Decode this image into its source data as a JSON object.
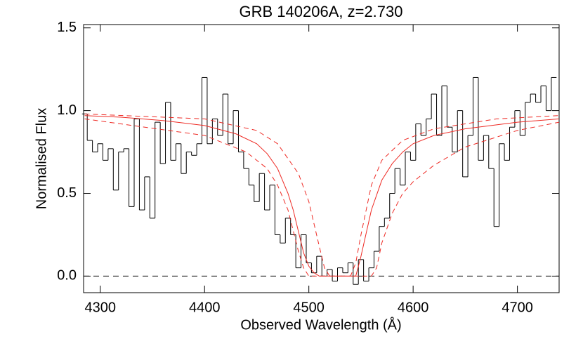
{
  "chart_data": {
    "type": "line",
    "title": "GRB 140206A, z=2.730",
    "x_label": "Observed Wavelength (Å)",
    "y_label": "Normalised Flux",
    "xlim": [
      4284,
      4740
    ],
    "ylim": [
      -0.1,
      1.52
    ],
    "xticks": [
      4300,
      4400,
      4500,
      4600,
      4700
    ],
    "yticks": [
      {
        "value": 0,
        "label": "0.0"
      },
      {
        "value": 0.5,
        "label": "0.5"
      },
      {
        "value": 1,
        "label": "1.0"
      },
      {
        "value": 1.5,
        "label": "1.5"
      }
    ],
    "reference_line": 0,
    "series": [
      {
        "style": "steps",
        "color": "#000000",
        "x": [
          4285,
          4290,
          4295,
          4300,
          4305,
          4310,
          4315,
          4320,
          4325,
          4330,
          4335,
          4340,
          4345,
          4350,
          4355,
          4360,
          4365,
          4370,
          4375,
          4380,
          4385,
          4390,
          4395,
          4400,
          4405,
          4410,
          4415,
          4420,
          4425,
          4430,
          4435,
          4440,
          4445,
          4450,
          4455,
          4460,
          4465,
          4470,
          4475,
          4480,
          4485,
          4490,
          4495,
          4500,
          4505,
          4510,
          4515,
          4520,
          4525,
          4530,
          4535,
          4540,
          4545,
          4550,
          4555,
          4560,
          4565,
          4570,
          4575,
          4580,
          4585,
          4590,
          4595,
          4600,
          4605,
          4610,
          4615,
          4620,
          4625,
          4630,
          4635,
          4640,
          4645,
          4650,
          4655,
          4660,
          4665,
          4670,
          4675,
          4680,
          4685,
          4690,
          4695,
          4700,
          4705,
          4710,
          4715,
          4720,
          4725,
          4730,
          4735
        ],
        "values": [
          0.98,
          0.82,
          0.75,
          0.8,
          0.7,
          0.77,
          0.52,
          0.75,
          0.77,
          0.42,
          0.95,
          0.4,
          0.6,
          0.35,
          0.93,
          0.68,
          1.05,
          0.7,
          0.8,
          0.62,
          0.75,
          0.73,
          0.8,
          1.2,
          0.8,
          0.95,
          0.85,
          1.1,
          0.8,
          1.0,
          0.75,
          0.65,
          0.55,
          0.45,
          0.62,
          0.4,
          0.55,
          0.25,
          0.2,
          0.35,
          0.25,
          0.05,
          0.25,
          0.08,
          0.02,
          0.12,
          0.0,
          0.04,
          -0.03,
          0.05,
          0.02,
          0.08,
          -0.05,
          0.1,
          -0.03,
          0.05,
          0.15,
          0.3,
          0.35,
          0.5,
          0.65,
          0.55,
          0.75,
          0.7,
          0.92,
          0.85,
          0.95,
          1.1,
          0.85,
          1.15,
          0.9,
          0.75,
          1.0,
          0.6,
          0.85,
          1.2,
          0.7,
          0.85,
          0.65,
          0.3,
          0.8,
          0.7,
          0.9,
          1.0,
          0.85,
          1.05,
          1.1,
          1.05,
          1.15,
          1.0,
          1.2
        ]
      },
      {
        "style": "solid",
        "color": "#ee2a24",
        "x": [
          4285,
          4320,
          4360,
          4400,
          4430,
          4450,
          4460,
          4470,
          4480,
          4485,
          4490,
          4495,
          4500,
          4505,
          4510,
          4545,
          4550,
          4555,
          4560,
          4570,
          4580,
          4590,
          4600,
          4620,
          4650,
          4700,
          4740
        ],
        "values": [
          0.97,
          0.96,
          0.94,
          0.91,
          0.86,
          0.8,
          0.74,
          0.65,
          0.5,
          0.4,
          0.27,
          0.14,
          0.06,
          0.02,
          0,
          0,
          0.12,
          0.26,
          0.4,
          0.58,
          0.68,
          0.75,
          0.8,
          0.85,
          0.89,
          0.93,
          0.95
        ]
      },
      {
        "style": "dashed",
        "color": "#ee2a24",
        "x": [
          4285,
          4400,
          4450,
          4470,
          4490,
          4500,
          4510,
          4515,
          4520,
          4540,
          4545,
          4550,
          4560,
          4570,
          4590,
          4620,
          4680,
          4740
        ],
        "values": [
          0.98,
          0.95,
          0.88,
          0.8,
          0.62,
          0.45,
          0.18,
          0.05,
          0,
          0,
          0.08,
          0.25,
          0.55,
          0.7,
          0.82,
          0.89,
          0.95,
          0.97
        ]
      },
      {
        "style": "dashed",
        "color": "#ee2a24",
        "x": [
          4285,
          4400,
          4440,
          4460,
          4470,
          4480,
          4490,
          4495,
          4500,
          4560,
          4565,
          4570,
          4580,
          4590,
          4600,
          4620,
          4650,
          4700,
          4740
        ],
        "values": [
          0.95,
          0.85,
          0.75,
          0.65,
          0.55,
          0.4,
          0.15,
          0.05,
          0,
          0,
          0.05,
          0.2,
          0.38,
          0.5,
          0.57,
          0.67,
          0.78,
          0.88,
          0.93
        ]
      }
    ]
  }
}
